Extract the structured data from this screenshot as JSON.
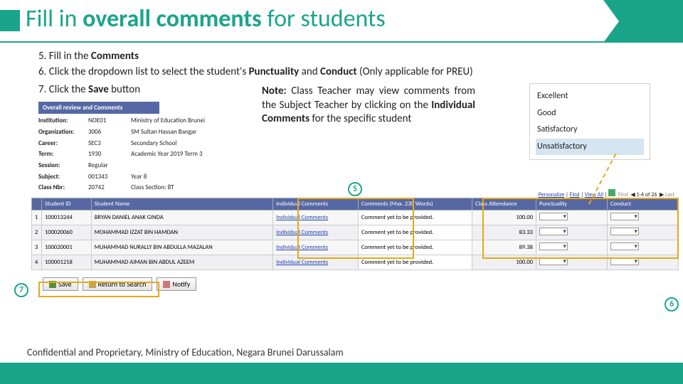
{
  "title_prefix": "Fill in ",
  "title_emph": "overall comments ",
  "title_suffix": "for students",
  "steps": {
    "s5": "5. Fill in the ",
    "s5b": "Comments",
    "s6a": "6. Click the dropdown list to select the student's ",
    "s6b": "Punctuality",
    "s6c": " and ",
    "s6d": "Conduct",
    "s6e": " (Only applicable for PREU)",
    "s7a": "7. Click the ",
    "s7b": "Save",
    "s7c": " button"
  },
  "note": {
    "lead": "Note:",
    "body1": " Class Teacher may view comments from the Subject Teacher by clicking on the ",
    "bold": "Individual Comments",
    "body2": " for the specific student"
  },
  "options": [
    "Excellent",
    "Good",
    "Satisfactory",
    "Unsatisfactory"
  ],
  "form": {
    "header": "Overall review and Comments",
    "rows": [
      [
        "Institution:",
        "NOE01",
        "Ministry of Education Brunei"
      ],
      [
        "Organization:",
        "3006",
        "SM Sultan Hassan Bangar"
      ],
      [
        "Career:",
        "SEC3",
        "Secondary School"
      ],
      [
        "Term:",
        "1930",
        "Academic Year 2019 Term 3"
      ],
      [
        "Session:",
        "Regular",
        ""
      ],
      [
        "Subject:",
        "001343",
        "Year 8"
      ],
      [
        "Class Nbr:",
        "20742",
        "Class Section: 8T"
      ]
    ]
  },
  "toolbar": {
    "personalize": "Personalize",
    "find": "Find",
    "viewall": "View All",
    "count": "1-4 of 26",
    "first": "First",
    "last": "Last"
  },
  "table": {
    "headers": [
      "",
      "Student ID",
      "Student Name",
      "Individual Comments",
      "Comments (Max. 230 Words)",
      "Class Attendance",
      "Punctuality",
      "Conduct"
    ],
    "rows": [
      [
        "1",
        "100013244",
        "BRYAN DANIEL ANAK GINDA",
        "Individual Comments",
        "Comment yet to be provided.",
        "100.00"
      ],
      [
        "2",
        "100020060",
        "MOHAMMAD IZZAT BIN HAMDAN",
        "Individual Comments",
        "Comment yet to be provided.",
        "83.33"
      ],
      [
        "3",
        "100020001",
        "MUHAMMAD NURALLY BIN ABDULLA MAZALAN",
        "Individual Comments",
        "Comment yet to be provided.",
        "89.38"
      ],
      [
        "4",
        "100001218",
        "MUHAMMAD AIMAN BIN ABDUL AZEEM",
        "Individual Comments",
        "Comment yet to be provided.",
        "100.00"
      ]
    ]
  },
  "callouts": {
    "c5": "5",
    "c6": "6",
    "c7": "7"
  },
  "buttons": {
    "save": "Save",
    "return": "Return to Search",
    "notify": "Notify"
  },
  "footer": "Confidential and Proprietary, Ministry of Education, Negara Brunei Darussalam",
  "colors": {
    "accent": "#1aa58a",
    "highlight": "#e6a817",
    "header": "#5668a4"
  }
}
